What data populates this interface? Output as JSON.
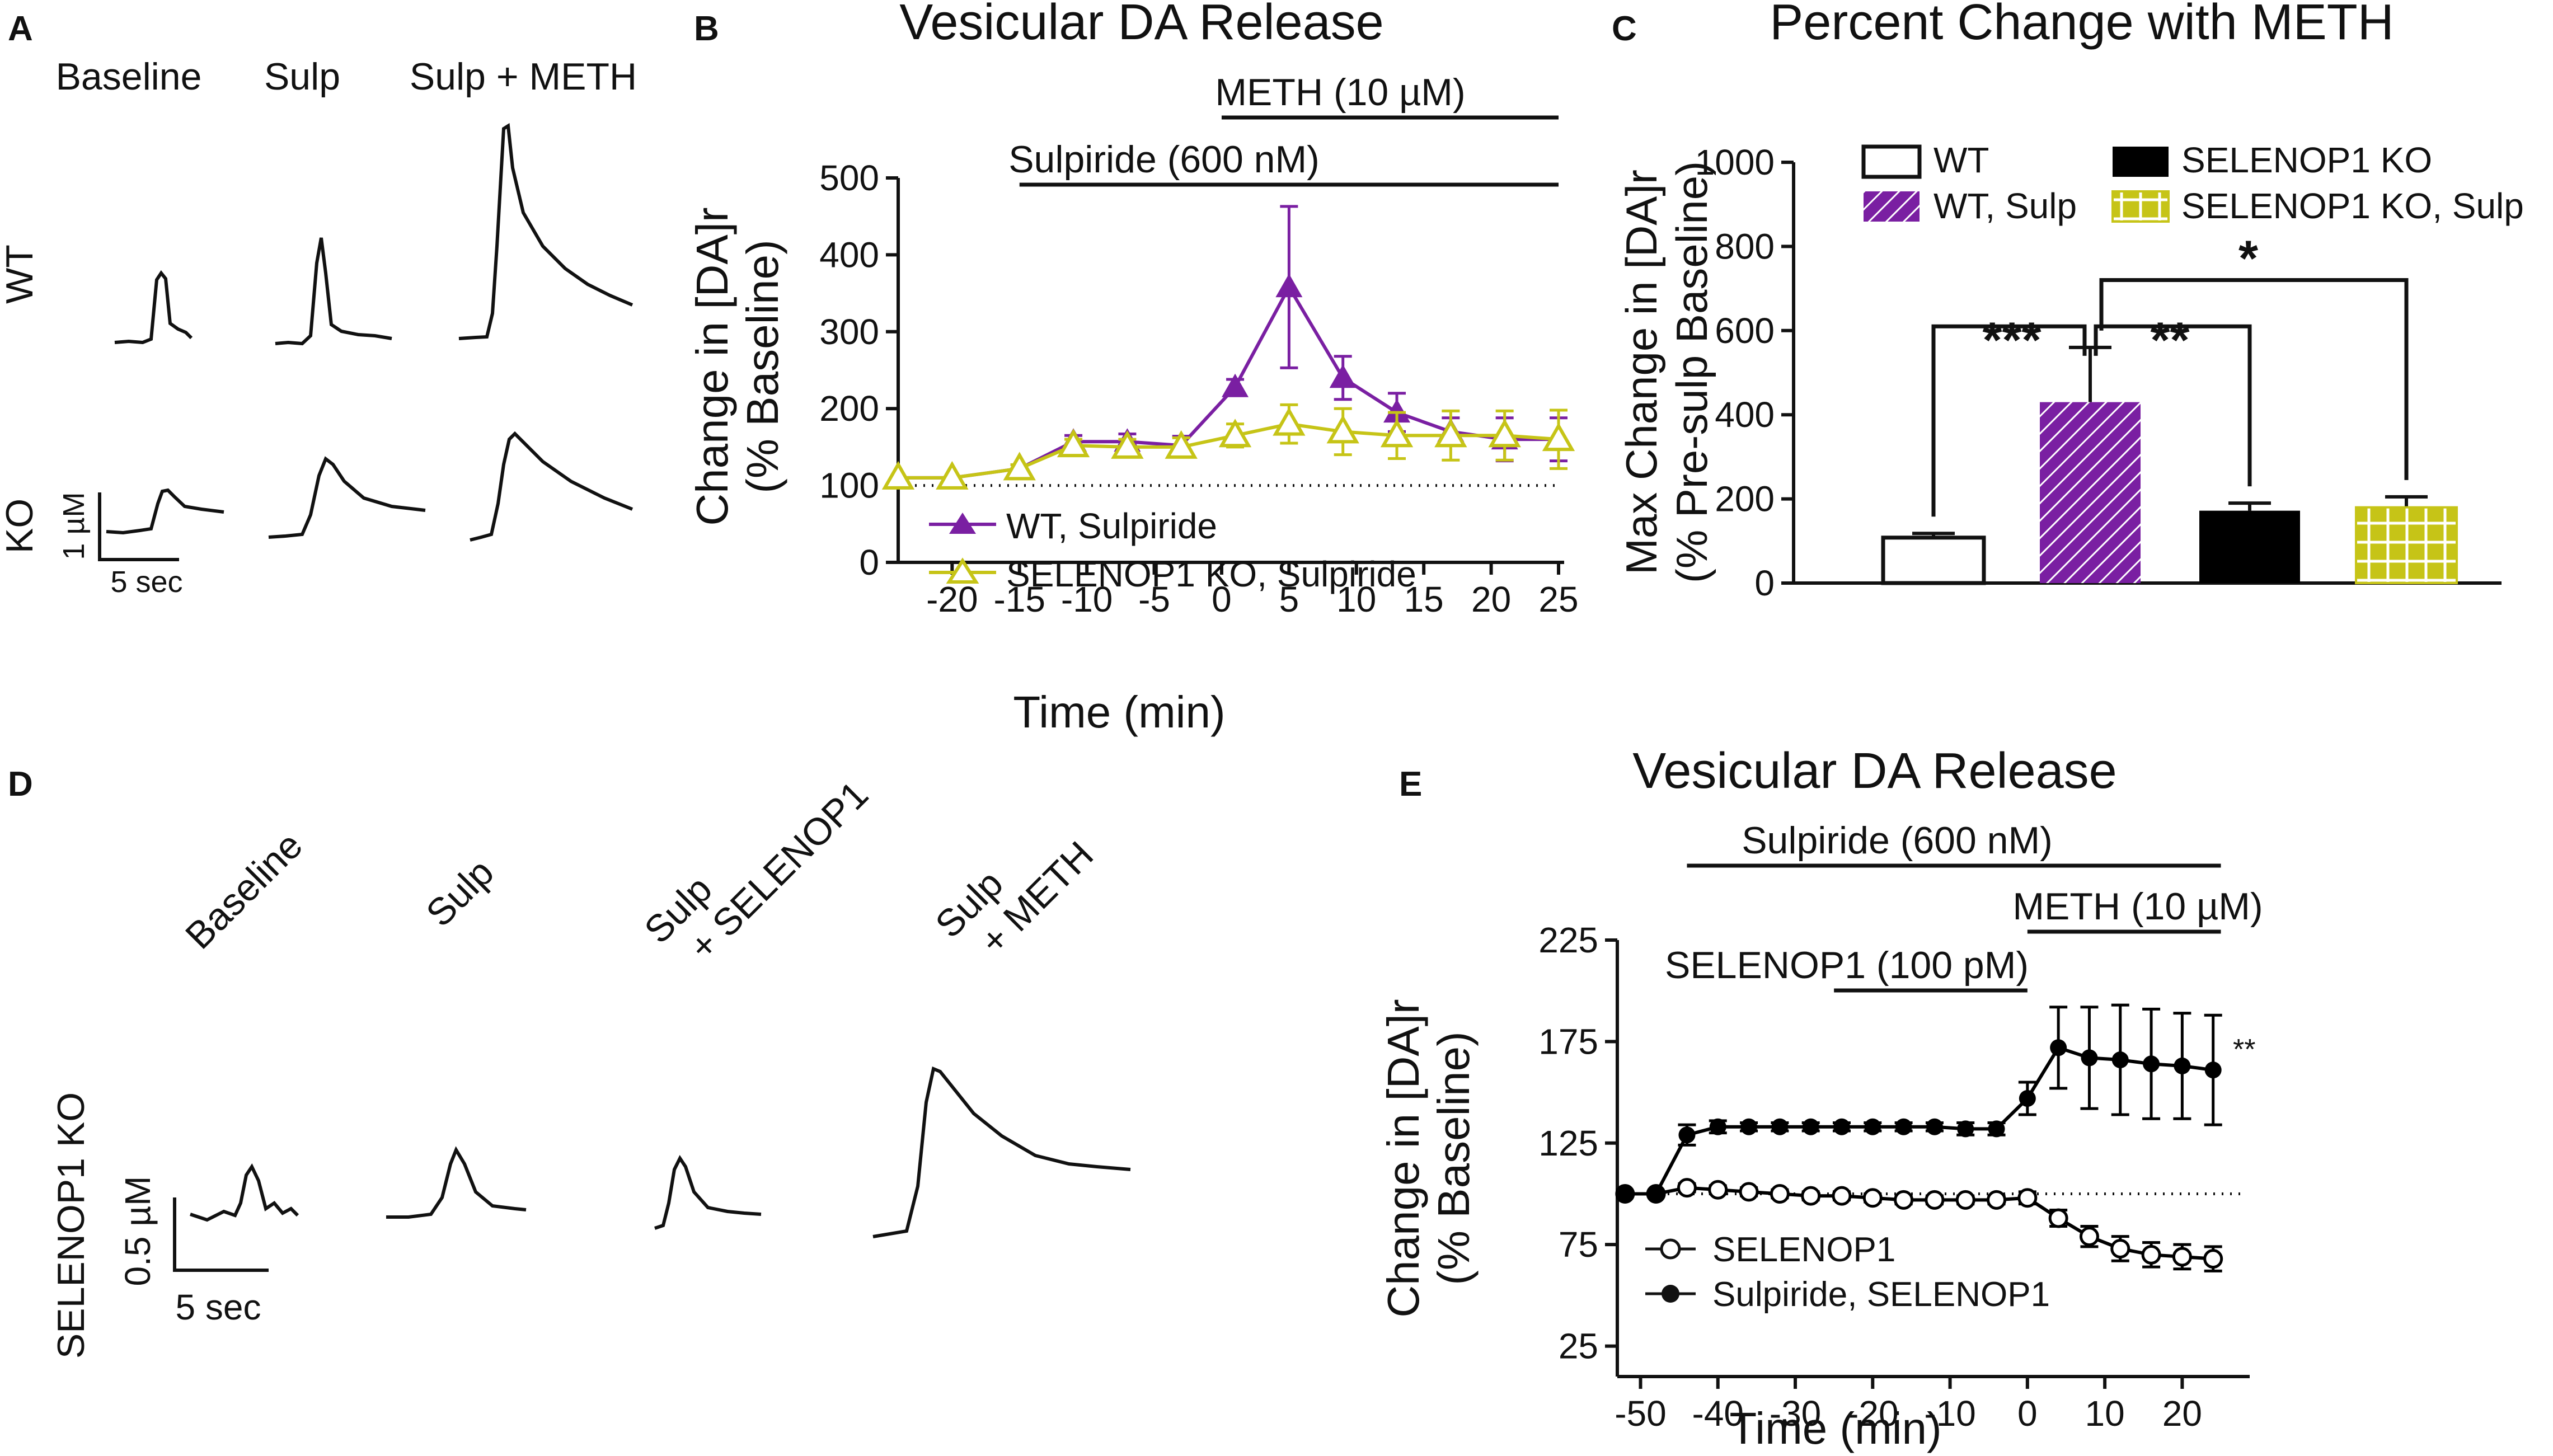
{
  "panelA": {
    "letter": "A",
    "col_labels": [
      "Baseline",
      "Sulp",
      "Sulp + METH"
    ],
    "row_labels": [
      "WT",
      "KO"
    ],
    "scale_y": "1 µM",
    "scale_x": "5 sec"
  },
  "panelD": {
    "letter": "D",
    "col_labels": [
      {
        "line1": "Baseline",
        "line2": ""
      },
      {
        "line1": "Sulp",
        "line2": ""
      },
      {
        "line1": "Sulp",
        "line2": "+ SELENOP1"
      },
      {
        "line1": "Sulp",
        "line2": "+ METH"
      }
    ],
    "row_label": "SELENOP1 KO",
    "scale_y": "0.5 µM",
    "scale_x": "5 sec"
  },
  "chart_data": [
    {
      "id": "B",
      "letter": "B",
      "type": "line",
      "title": "Vesicular DA Release",
      "xlabel": "Time (min)",
      "ylabel_line1": "Change in [DA]r",
      "ylabel_line2": "(% Baseline)",
      "xlim": [
        -24,
        25
      ],
      "ylim": [
        0,
        500
      ],
      "xticks": [
        -20,
        -15,
        -10,
        -5,
        0,
        5,
        10,
        15,
        20,
        25
      ],
      "yticks": [
        0,
        100,
        200,
        300,
        400,
        500
      ],
      "reference_line": 100,
      "drug_bars": [
        {
          "label": "Sulpiride (600 nM)",
          "start": -15,
          "end": 25
        },
        {
          "label": "METH (10 µM)",
          "start": 0,
          "end": 25
        }
      ],
      "series": [
        {
          "name": "WT, Sulpiride",
          "color": "#7a1fa2",
          "marker": "filled-triangle",
          "x": [
            -24,
            -20,
            -15,
            -11,
            -7,
            -3,
            1,
            5,
            9,
            13,
            17,
            21,
            25
          ],
          "y": [
            110,
            110,
            122,
            157,
            157,
            152,
            228,
            358,
            240,
            195,
            170,
            160,
            160
          ],
          "err": [
            0,
            0,
            5,
            8,
            10,
            12,
            10,
            105,
            28,
            25,
            18,
            28,
            28
          ]
        },
        {
          "name": "SELENOP1 KO, Sulpiride",
          "color": "#c6c417",
          "marker": "open-triangle",
          "x": [
            -24,
            -20,
            -15,
            -11,
            -7,
            -3,
            1,
            5,
            9,
            13,
            17,
            21,
            25
          ],
          "y": [
            110,
            110,
            122,
            152,
            150,
            150,
            165,
            180,
            170,
            165,
            165,
            165,
            160
          ],
          "err": [
            0,
            0,
            5,
            8,
            10,
            12,
            15,
            25,
            30,
            30,
            32,
            32,
            38
          ]
        }
      ]
    },
    {
      "id": "C",
      "letter": "C",
      "type": "bar",
      "title": "Percent Change with METH",
      "ylabel_line1": "Max Change in [DA]r",
      "ylabel_line2": "(% Pre-sulp Baseline)",
      "ylim": [
        0,
        1000
      ],
      "yticks": [
        0,
        200,
        400,
        600,
        800,
        1000
      ],
      "categories": [
        "WT",
        "WT, Sulp",
        "SELENOP1 KO",
        "SELENOP1 KO, Sulp"
      ],
      "values": [
        108,
        430,
        172,
        180
      ],
      "errors": [
        10,
        130,
        18,
        25
      ],
      "colors": [
        "#ffffff",
        "#7a1fa2",
        "#000000",
        "#c6c417"
      ],
      "patterns": [
        "open",
        "hatch",
        "solid",
        "grid"
      ],
      "significance": [
        {
          "label": "***",
          "from": 0,
          "to": 1
        },
        {
          "label": "**",
          "from": 1,
          "to": 2
        },
        {
          "label": "*",
          "from": 1,
          "to": 3
        }
      ]
    },
    {
      "id": "E",
      "letter": "E",
      "type": "line",
      "title": "Vesicular DA Release",
      "xlabel": "Time (min)",
      "ylabel_line1": "Change in [DA]r",
      "ylabel_line2": "(% Baseline)",
      "xlim": [
        -53,
        28
      ],
      "ylim": [
        10,
        225
      ],
      "xticks": [
        -50,
        -40,
        -30,
        -20,
        -10,
        0,
        10,
        20
      ],
      "yticks": [
        25,
        75,
        125,
        175,
        225
      ],
      "reference_line": 100,
      "significance_label": "**",
      "drug_bars": [
        {
          "label": "Sulpiride (600 nM)",
          "start": -44,
          "end": 25
        },
        {
          "label": "METH (10 µM)",
          "start": 0,
          "end": 25
        },
        {
          "label": "SELENOP1 (100 pM)",
          "start": -25,
          "end": 0
        }
      ],
      "series": [
        {
          "name": "SELENOP1",
          "color": "#000000",
          "marker": "open-circle",
          "x": [
            -52,
            -48,
            -44,
            -40,
            -36,
            -32,
            -28,
            -24,
            -20,
            -16,
            -12,
            -8,
            -4,
            0,
            4,
            8,
            12,
            16,
            20,
            24
          ],
          "y": [
            100,
            100,
            103,
            102,
            101,
            100,
            99,
            99,
            98,
            97,
            97,
            97,
            97,
            98,
            88,
            79,
            73,
            70,
            69,
            68
          ],
          "err": [
            0,
            0,
            2,
            2,
            2,
            2,
            2,
            2,
            2,
            2,
            2,
            2,
            2,
            3,
            4,
            5,
            6,
            6,
            6,
            6
          ]
        },
        {
          "name": "Sulpiride, SELENOP1",
          "color": "#000000",
          "marker": "filled-circle",
          "x": [
            -52,
            -48,
            -44,
            -40,
            -36,
            -32,
            -28,
            -24,
            -20,
            -16,
            -12,
            -8,
            -4,
            0,
            4,
            8,
            12,
            16,
            20,
            24
          ],
          "y": [
            100,
            100,
            129,
            133,
            133,
            133,
            133,
            133,
            133,
            133,
            133,
            132,
            132,
            147,
            172,
            167,
            166,
            164,
            163,
            161
          ],
          "err": [
            0,
            0,
            5,
            3,
            2,
            2,
            2,
            2,
            2,
            2,
            2,
            3,
            3,
            8,
            20,
            25,
            27,
            27,
            26,
            27
          ]
        }
      ]
    }
  ]
}
